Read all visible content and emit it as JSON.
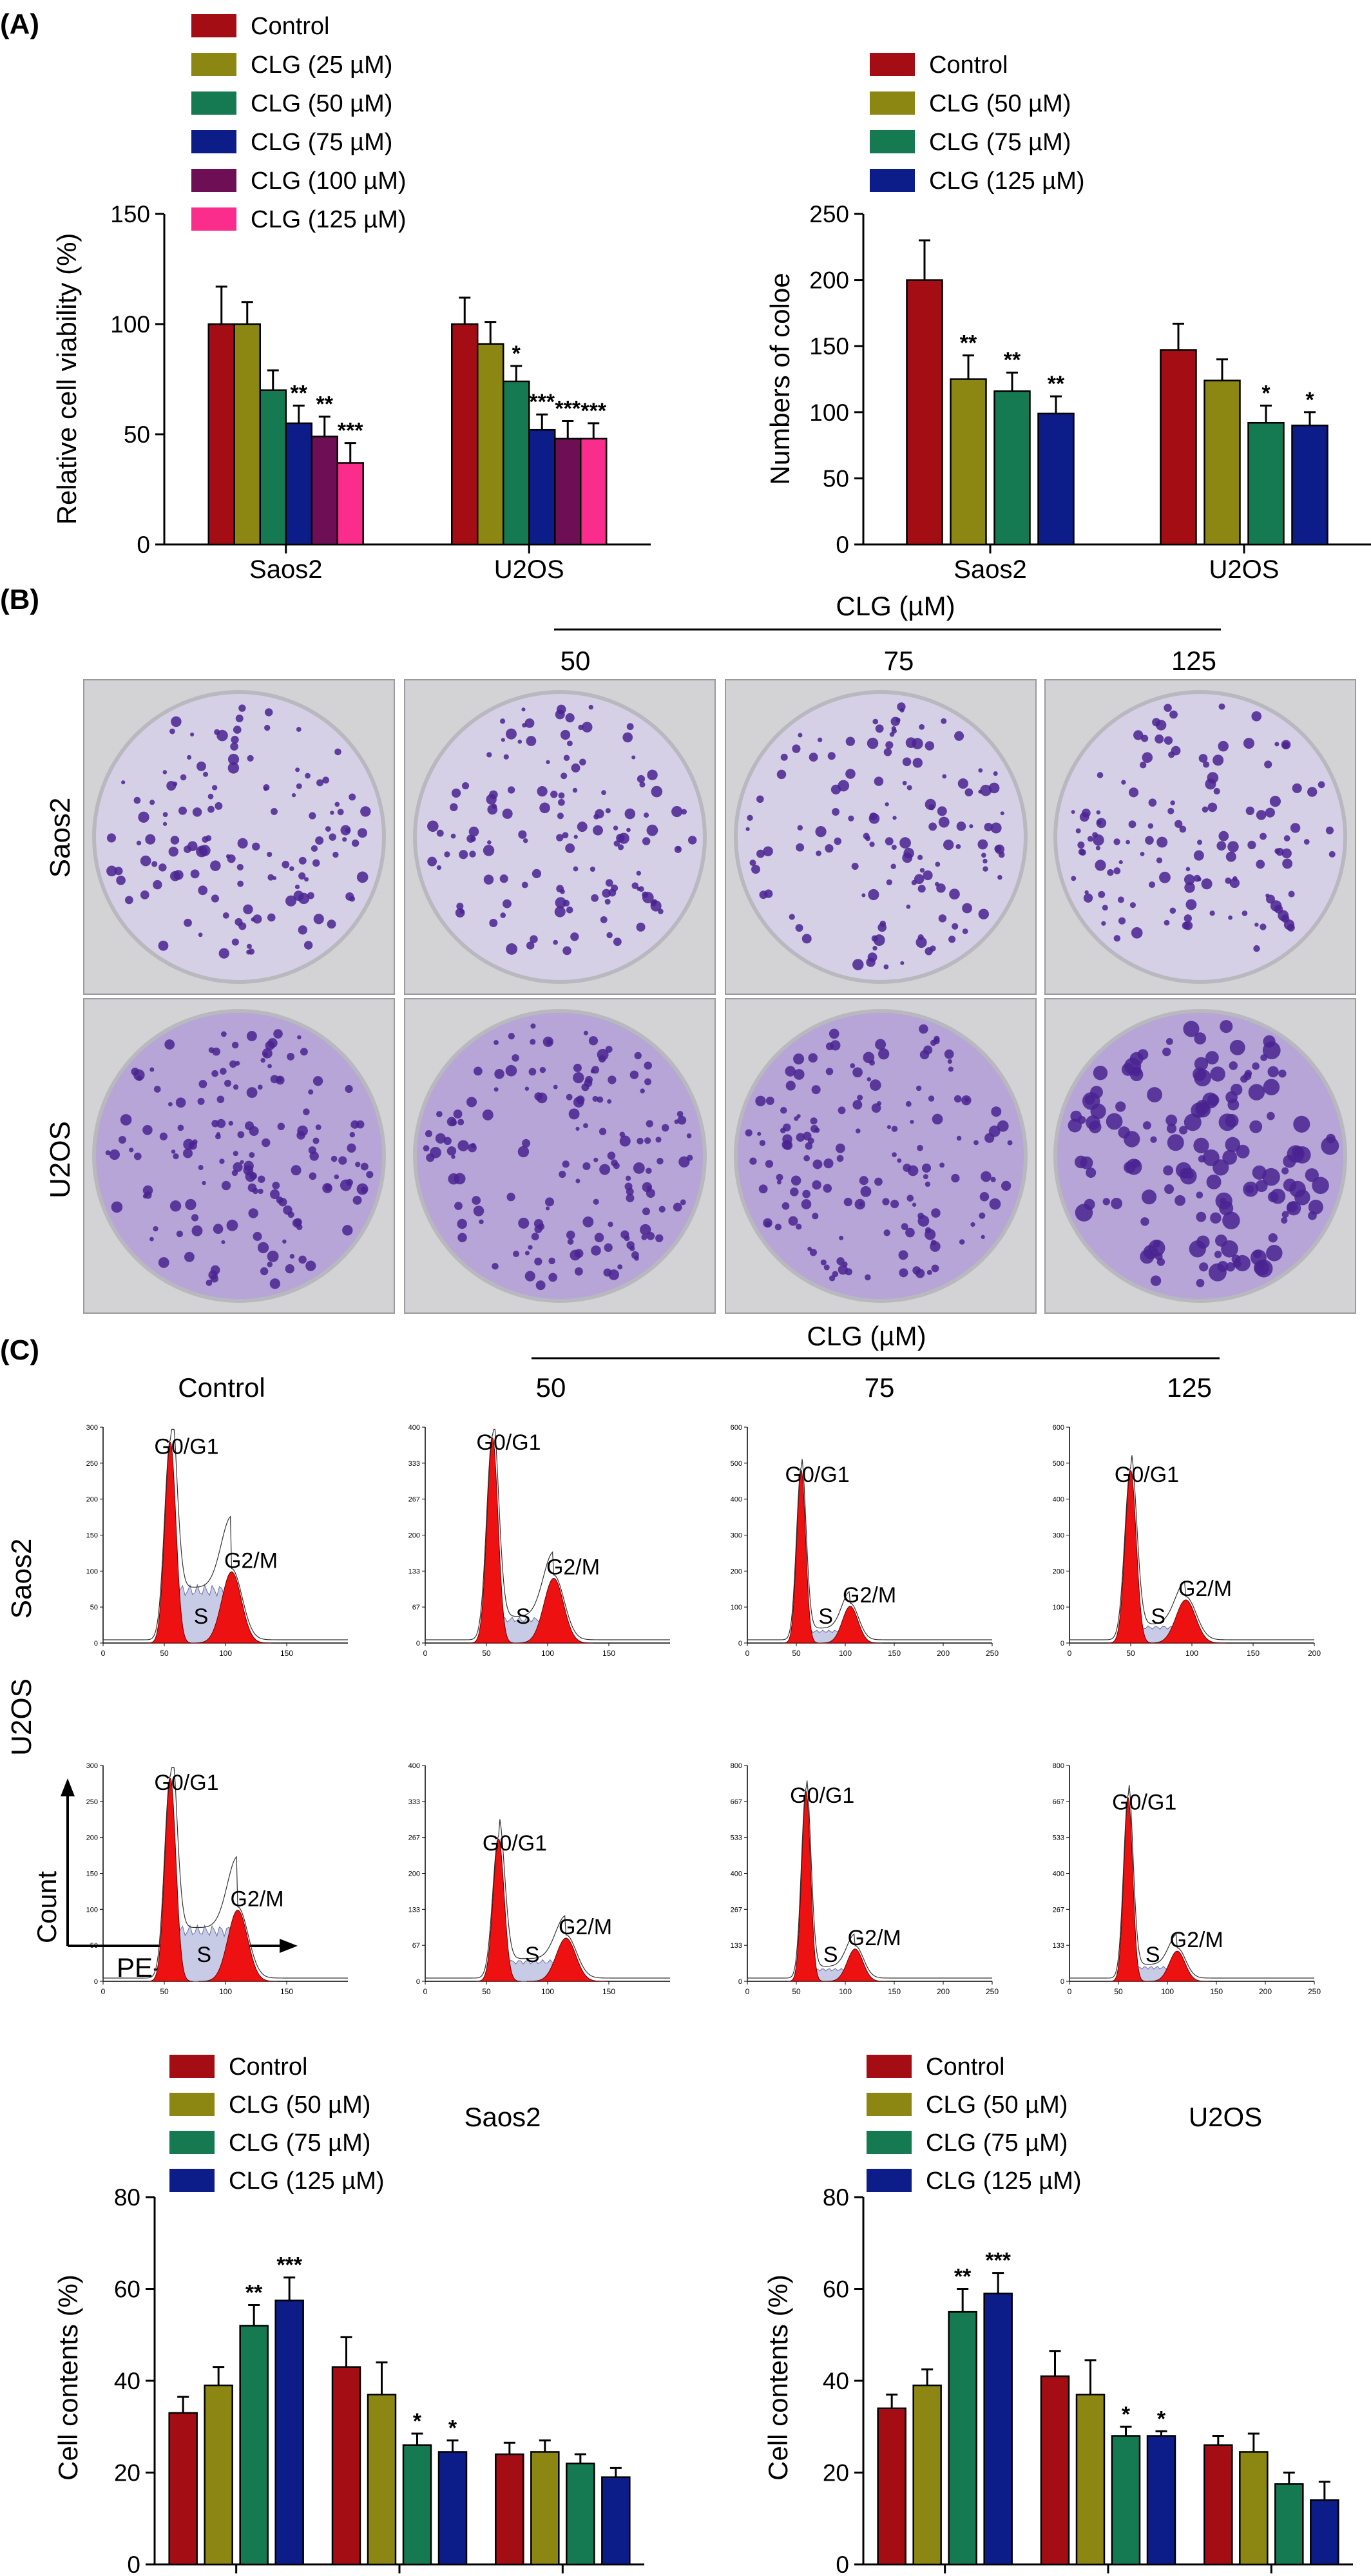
{
  "figure": {
    "panel_labels": [
      "(A)",
      "(B)",
      "(C)"
    ],
    "cell_lines": [
      "Saos2",
      "U2OS"
    ],
    "treatment_header": "CLG (µM)",
    "colony_columns": [
      "50",
      "75",
      "125"
    ],
    "flow_columns": [
      "Control",
      "50",
      "75",
      "125"
    ],
    "flow_axes": {
      "y": "Count",
      "x": "PE-A"
    },
    "phase_labels": {
      "g0g1": "G0/G1",
      "s": "S",
      "g2m": "G2/M"
    }
  },
  "colors": {
    "Control": "#a30d13",
    "CLG25": "#8c8612",
    "CLG50": "#157a52",
    "CLG75": "#0c1d8a",
    "CLG100": "#6e0f55",
    "CLG125": "#fa2d8c",
    "peak_fill": "#ee1111",
    "dish_stain": "#4a2390"
  },
  "chart_data": [
    {
      "id": "viability",
      "type": "bar",
      "ylabel": "Relative cell viability (%)",
      "xlabel": "",
      "ylim": [
        0,
        150
      ],
      "yticks": [
        0,
        50,
        100,
        150
      ],
      "categories": [
        "Saos2",
        "U2OS"
      ],
      "series": [
        {
          "name": "Control",
          "color_key": "Control",
          "values": [
            100,
            100
          ],
          "errors": [
            17,
            12
          ],
          "sig": [
            "",
            ""
          ]
        },
        {
          "name": "CLG (25 µM)",
          "color_key": "CLG25",
          "values": [
            100,
            91
          ],
          "errors": [
            10,
            10
          ],
          "sig": [
            "",
            ""
          ]
        },
        {
          "name": "CLG (50 µM)",
          "color_key": "CLG50",
          "values": [
            70,
            74
          ],
          "errors": [
            9,
            7
          ],
          "sig": [
            "",
            "*"
          ]
        },
        {
          "name": "CLG (75 µM)",
          "color_key": "CLG75",
          "values": [
            55,
            52
          ],
          "errors": [
            8,
            7
          ],
          "sig": [
            "**",
            "***"
          ]
        },
        {
          "name": "CLG (100 µM)",
          "color_key": "CLG100",
          "values": [
            49,
            48
          ],
          "errors": [
            9,
            8
          ],
          "sig": [
            "**",
            "***"
          ]
        },
        {
          "name": "CLG (125 µM)",
          "color_key": "CLG125",
          "values": [
            37,
            48
          ],
          "errors": [
            9,
            7
          ],
          "sig": [
            "***",
            "***"
          ]
        }
      ]
    },
    {
      "id": "colony",
      "type": "bar",
      "ylabel": "Numbers of coloe",
      "xlabel": "",
      "ylim": [
        0,
        250
      ],
      "yticks": [
        0,
        50,
        100,
        150,
        200,
        250
      ],
      "categories": [
        "Saos2",
        "U2OS"
      ],
      "series": [
        {
          "name": "Control",
          "color_key": "Control",
          "values": [
            200,
            147
          ],
          "errors": [
            30,
            20
          ],
          "sig": [
            "",
            ""
          ]
        },
        {
          "name": "CLG (50 µM)",
          "color_key": "CLG25",
          "values": [
            125,
            124
          ],
          "errors": [
            18,
            16
          ],
          "sig": [
            "**",
            ""
          ]
        },
        {
          "name": "CLG (75 µM)",
          "color_key": "CLG50",
          "values": [
            116,
            92
          ],
          "errors": [
            14,
            13
          ],
          "sig": [
            "**",
            "*"
          ]
        },
        {
          "name": "CLG (125 µM)",
          "color_key": "CLG75",
          "values": [
            99,
            90
          ],
          "errors": [
            13,
            10
          ],
          "sig": [
            "**",
            "*"
          ]
        }
      ]
    },
    {
      "id": "cycle_saos2",
      "type": "bar",
      "title": "Saos2",
      "ylabel": "Cell contents (%)",
      "xlabel": "",
      "ylim": [
        0,
        80
      ],
      "yticks": [
        0,
        20,
        40,
        60,
        80
      ],
      "categories": [
        "G0/G1",
        "S",
        "G2/M"
      ],
      "series": [
        {
          "name": "Control",
          "color_key": "Control",
          "values": [
            33,
            43,
            24
          ],
          "errors": [
            3.5,
            6.5,
            2.5
          ],
          "sig": [
            "",
            "",
            ""
          ]
        },
        {
          "name": "CLG (50 µM)",
          "color_key": "CLG25",
          "values": [
            39,
            37,
            24.5
          ],
          "errors": [
            4,
            7,
            2.5
          ],
          "sig": [
            "",
            "",
            ""
          ]
        },
        {
          "name": "CLG (75 µM)",
          "color_key": "CLG50",
          "values": [
            52,
            26,
            22
          ],
          "errors": [
            4.5,
            2.5,
            2
          ],
          "sig": [
            "**",
            "*",
            ""
          ]
        },
        {
          "name": "CLG (125 µM)",
          "color_key": "CLG75",
          "values": [
            57.5,
            24.5,
            19
          ],
          "errors": [
            5,
            2.5,
            2
          ],
          "sig": [
            "***",
            "*",
            ""
          ]
        }
      ]
    },
    {
      "id": "cycle_u2os",
      "type": "bar",
      "title": "U2OS",
      "ylabel": "Cell contents (%)",
      "xlabel": "",
      "ylim": [
        0,
        80
      ],
      "yticks": [
        0,
        20,
        40,
        60,
        80
      ],
      "categories": [
        "G0/G1",
        "S",
        "G2/M"
      ],
      "series": [
        {
          "name": "Control",
          "color_key": "Control",
          "values": [
            34,
            41,
            26
          ],
          "errors": [
            3,
            5.5,
            2
          ],
          "sig": [
            "",
            "",
            ""
          ]
        },
        {
          "name": "CLG (50 µM)",
          "color_key": "CLG25",
          "values": [
            39,
            37,
            24.5
          ],
          "errors": [
            3.5,
            7.5,
            4
          ],
          "sig": [
            "",
            "",
            ""
          ]
        },
        {
          "name": "CLG (75 µM)",
          "color_key": "CLG50",
          "values": [
            55,
            28,
            17.5
          ],
          "errors": [
            5,
            2,
            2.5
          ],
          "sig": [
            "**",
            "*",
            ""
          ]
        },
        {
          "name": "CLG (125 µM)",
          "color_key": "CLG75",
          "values": [
            59,
            28,
            14
          ],
          "errors": [
            4.5,
            1,
            4
          ],
          "sig": [
            "***",
            "*",
            ""
          ]
        }
      ]
    }
  ],
  "flow_plots": [
    {
      "row": "Saos2",
      "col": "Control",
      "ymax": 300,
      "xmax": 200,
      "xticks": [
        0,
        50,
        100,
        150
      ],
      "g1": 55,
      "g2": 105,
      "g1h": 0.93,
      "g2h": 0.33,
      "s": 0.27
    },
    {
      "row": "Saos2",
      "col": "50",
      "ymax": 400,
      "xmax": 200,
      "xticks": [
        0,
        50,
        100,
        150
      ],
      "g1": 55,
      "g2": 105,
      "g1h": 0.95,
      "g2h": 0.3,
      "s": 0.12
    },
    {
      "row": "Saos2",
      "col": "75",
      "ymax": 600,
      "xmax": 250,
      "xticks": [
        0,
        50,
        100,
        150,
        200,
        250
      ],
      "g1": 55,
      "g2": 105,
      "g1h": 0.8,
      "g2h": 0.17,
      "s": 0.06
    },
    {
      "row": "Saos2",
      "col": "125",
      "ymax": 600,
      "xmax": 200,
      "xticks": [
        0,
        50,
        100,
        150,
        200
      ],
      "g1": 50,
      "g2": 95,
      "g1h": 0.8,
      "g2h": 0.2,
      "s": 0.08
    },
    {
      "row": "U2OS",
      "col": "Control",
      "ymax": 300,
      "xmax": 200,
      "xticks": [
        0,
        50,
        100,
        150
      ],
      "g1": 55,
      "g2": 110,
      "g1h": 0.94,
      "g2h": 0.33,
      "s": 0.26
    },
    {
      "row": "U2OS",
      "col": "50",
      "ymax": 400,
      "xmax": 200,
      "xticks": [
        0,
        50,
        100,
        150
      ],
      "g1": 60,
      "g2": 115,
      "g1h": 0.66,
      "g2h": 0.2,
      "s": 0.1
    },
    {
      "row": "U2OS",
      "col": "75",
      "ymax": 800,
      "xmax": 250,
      "xticks": [
        0,
        50,
        100,
        150,
        200,
        250
      ],
      "g1": 60,
      "g2": 110,
      "g1h": 0.88,
      "g2h": 0.15,
      "s": 0.06
    },
    {
      "row": "U2OS",
      "col": "125",
      "ymax": 800,
      "xmax": 250,
      "xticks": [
        0,
        50,
        100,
        150,
        200,
        250
      ],
      "g1": 60,
      "g2": 110,
      "g1h": 0.85,
      "g2h": 0.14,
      "s": 0.07
    }
  ]
}
